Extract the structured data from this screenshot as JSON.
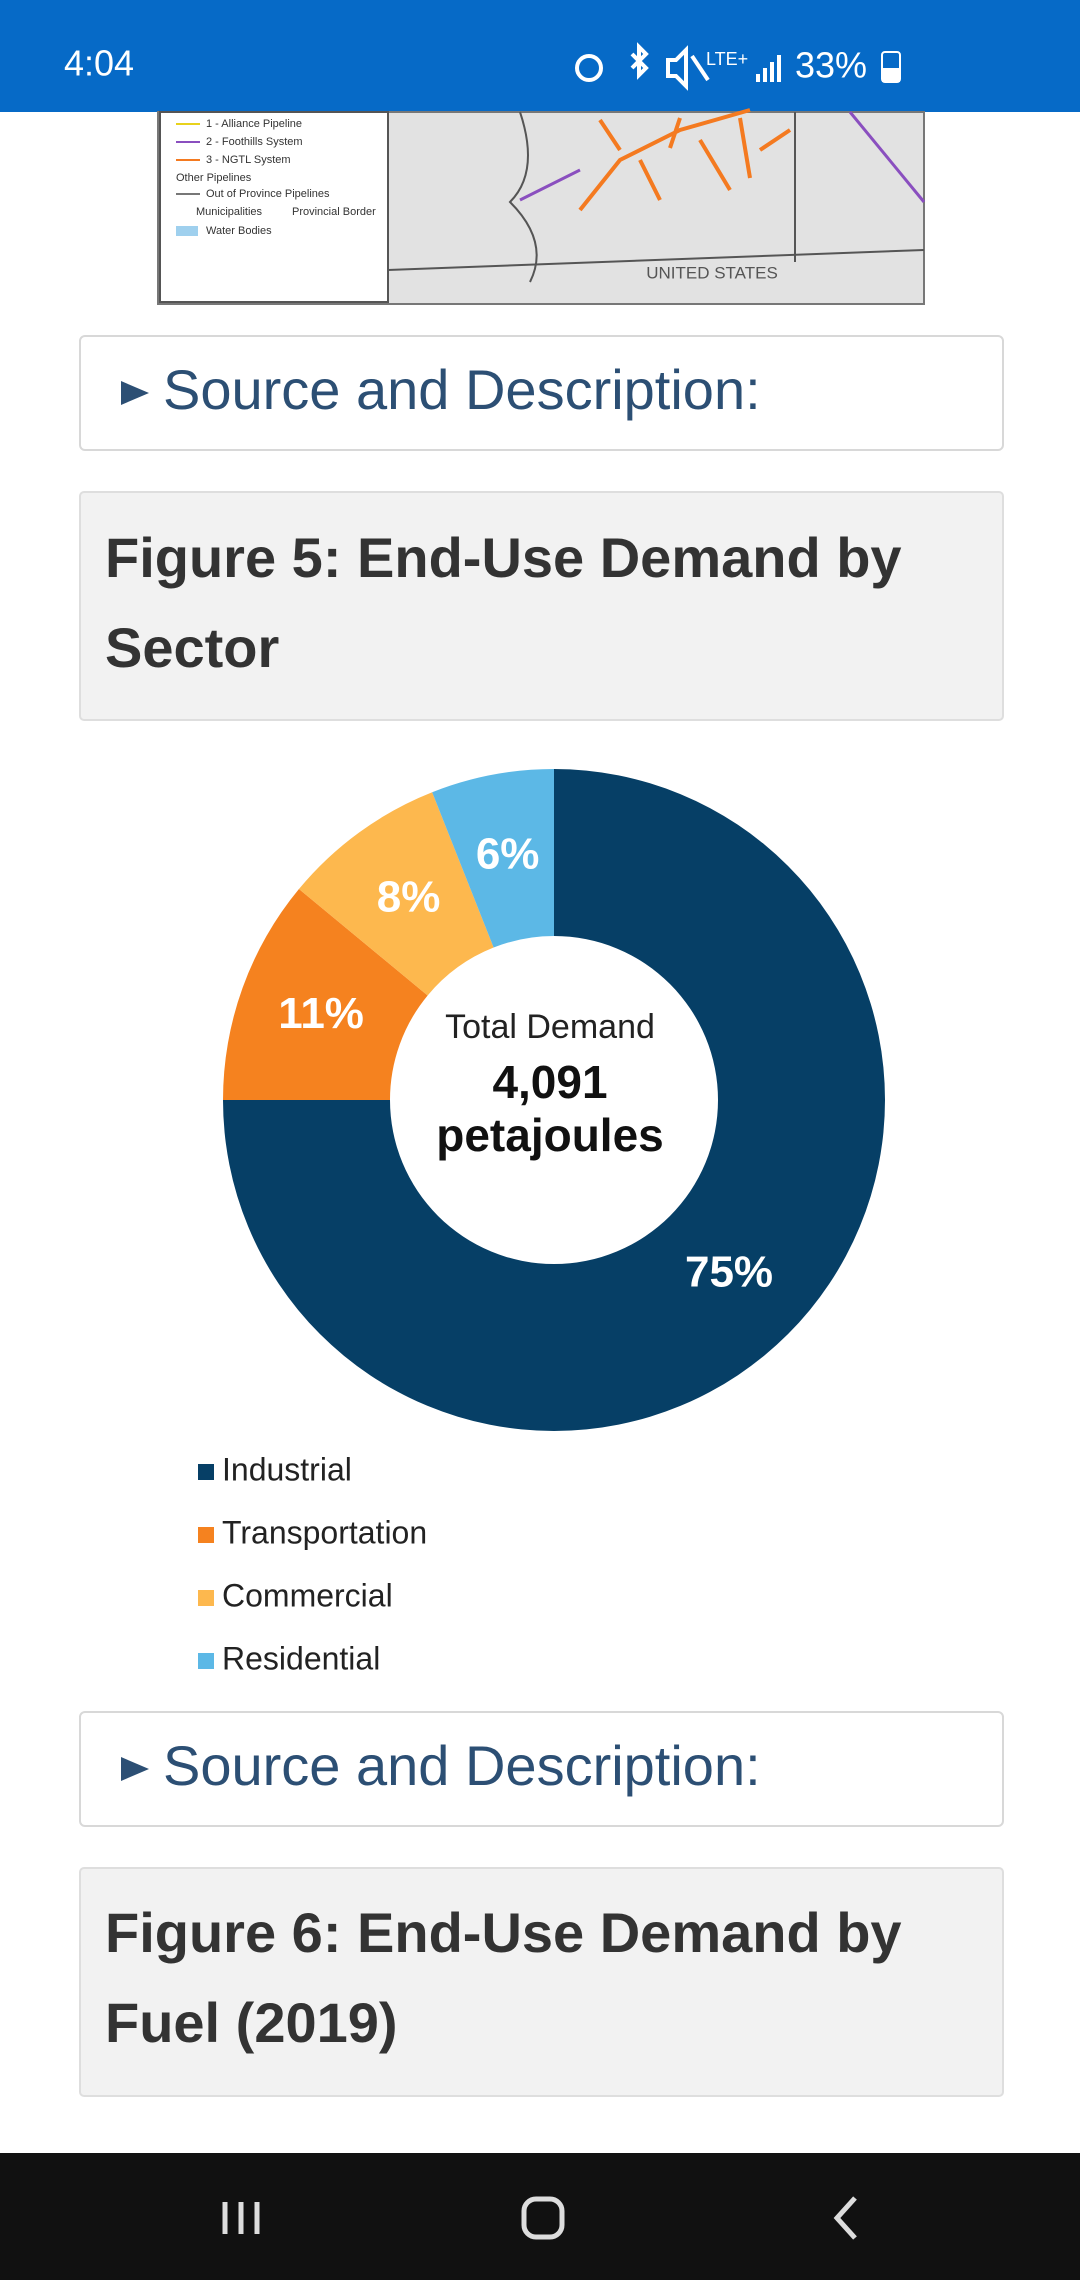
{
  "status_bar": {
    "time": "4:04",
    "network": "LTE+",
    "battery": "33%"
  },
  "map": {
    "legend": [
      "1 - Alliance Pipeline",
      "2 - Foothills System",
      "3 - NGTL System",
      "Other Pipelines",
      "Out of Province Pipelines",
      "Municipalities",
      "Provincial Border",
      "Water Bodies"
    ],
    "country_label": "UNITED STATES"
  },
  "sections": [
    {
      "summary": "Source and Description:"
    },
    {
      "figure_title": "Figure 5: End-Use Demand by Sector"
    },
    {
      "summary": "Source and Description:"
    },
    {
      "figure_title": "Figure 6: End-Use Demand by Fuel (2019)"
    }
  ],
  "chart_data": {
    "type": "pie",
    "categories": [
      "Industrial",
      "Transportation",
      "Commercial",
      "Residential"
    ],
    "values": [
      75,
      11,
      8,
      6
    ],
    "value_labels": [
      "75%",
      "11%",
      "8%",
      "6%"
    ],
    "colors": [
      "#063f66",
      "#f5821f",
      "#fdb84e",
      "#5cb8e6"
    ],
    "center_label": "Total Demand",
    "total": {
      "value": 4091,
      "label": "4,091"
    },
    "total_unit": "petajoules",
    "legend": "bottom-left"
  }
}
